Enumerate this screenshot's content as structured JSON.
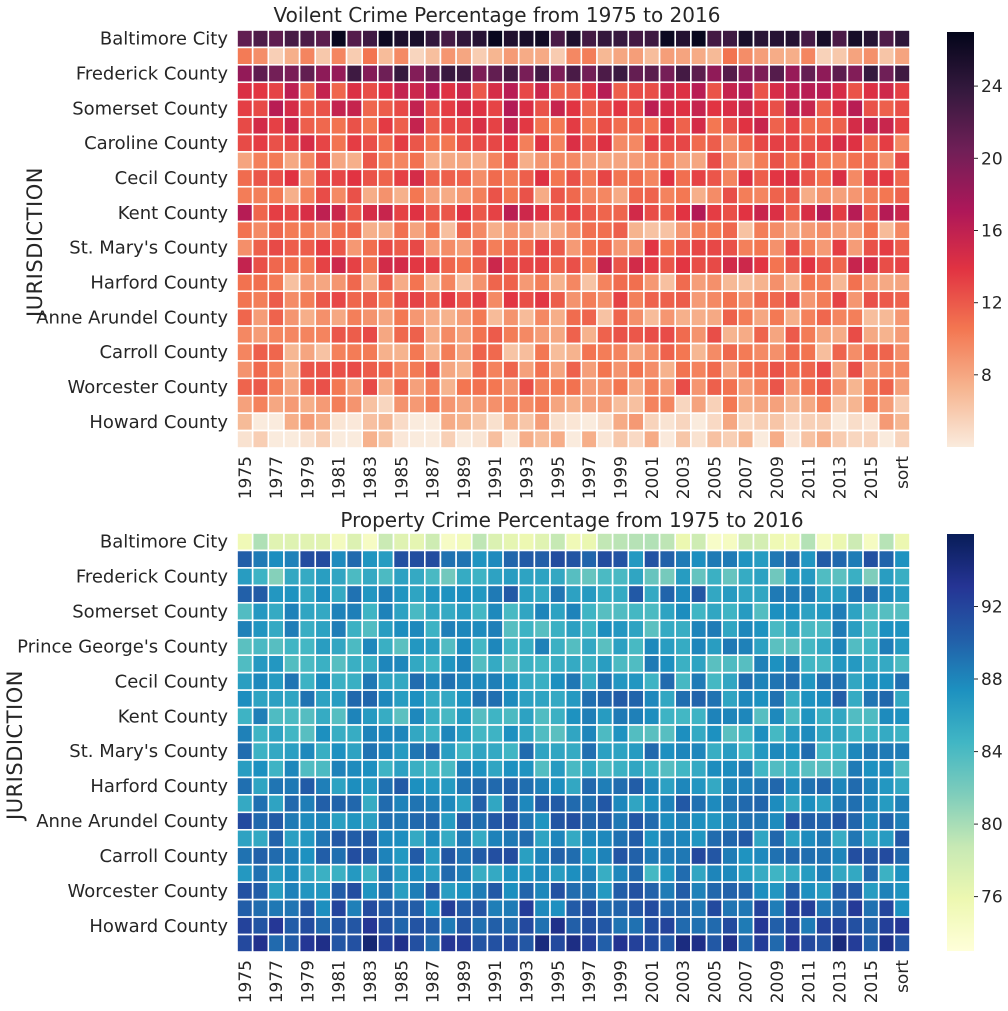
{
  "chart_data": [
    {
      "type": "heatmap",
      "title": "Voilent Crime Percentage from 1975 to 2016",
      "ylabel": "JURISDICTION",
      "xlabel": "",
      "row_tick_labels": [
        "Baltimore City",
        "Frederick County",
        "Somerset County",
        "Caroline County",
        "Cecil County",
        "Kent County",
        "St. Mary's County",
        "Harford County",
        "Anne Arundel County",
        "Carroll County",
        "Worcester County",
        "Howard County"
      ],
      "col_tick_labels": [
        "1975",
        "1977",
        "1979",
        "1981",
        "1983",
        "1985",
        "1987",
        "1989",
        "1991",
        "1993",
        "1995",
        "1997",
        "1999",
        "2001",
        "2003",
        "2005",
        "2007",
        "2009",
        "2011",
        "2013",
        "2015",
        "sort"
      ],
      "columns": [
        "1975",
        "1976",
        "1977",
        "1978",
        "1979",
        "1980",
        "1981",
        "1982",
        "1983",
        "1984",
        "1985",
        "1986",
        "1987",
        "1988",
        "1989",
        "1990",
        "1991",
        "1992",
        "1993",
        "1994",
        "1995",
        "1996",
        "1997",
        "1998",
        "1999",
        "2000",
        "2001",
        "2002",
        "2003",
        "2004",
        "2005",
        "2006",
        "2007",
        "2008",
        "2009",
        "2010",
        "2011",
        "2012",
        "2013",
        "2014",
        "2015",
        "2016",
        "sort"
      ],
      "num_rows": 24,
      "colormap": "rocket_r",
      "colorbar": {
        "min": 4,
        "max": 27,
        "ticks": [
          8,
          12,
          16,
          20,
          24
        ]
      },
      "row_levels": [
        24,
        8,
        21,
        14,
        14,
        13,
        12,
        10,
        12,
        10,
        14,
        9,
        11,
        13,
        9,
        11,
        9,
        10,
        9,
        10,
        10,
        8,
        6,
        5
      ],
      "grid_lines": true
    },
    {
      "type": "heatmap",
      "title": "Property Crime Percentage from 1975 to 2016",
      "ylabel": "JURISDICTION",
      "xlabel": "",
      "row_tick_labels": [
        "Baltimore City",
        "Frederick County",
        "Somerset County",
        "Prince George's County",
        "Cecil County",
        "Kent County",
        "St. Mary's County",
        "Harford County",
        "Anne Arundel County",
        "Carroll County",
        "Worcester County",
        "Howard County"
      ],
      "col_tick_labels": [
        "1975",
        "1977",
        "1979",
        "1981",
        "1983",
        "1985",
        "1987",
        "1989",
        "1991",
        "1993",
        "1995",
        "1997",
        "1999",
        "2001",
        "2003",
        "2005",
        "2007",
        "2009",
        "2011",
        "2013",
        "2015",
        "sort"
      ],
      "columns": [
        "1975",
        "1976",
        "1977",
        "1978",
        "1979",
        "1980",
        "1981",
        "1982",
        "1983",
        "1984",
        "1985",
        "1986",
        "1987",
        "1988",
        "1989",
        "1990",
        "1991",
        "1992",
        "1993",
        "1994",
        "1995",
        "1996",
        "1997",
        "1998",
        "1999",
        "2000",
        "2001",
        "2002",
        "2003",
        "2004",
        "2005",
        "2006",
        "2007",
        "2008",
        "2009",
        "2010",
        "2011",
        "2012",
        "2013",
        "2014",
        "2015",
        "2016",
        "sort"
      ],
      "num_rows": 24,
      "colormap": "YlGnBu",
      "colorbar": {
        "min": 73,
        "max": 96,
        "ticks": [
          76,
          80,
          84,
          88,
          92
        ]
      },
      "row_levels": [
        77,
        89,
        84,
        88,
        86,
        86,
        86,
        86,
        87,
        88,
        86,
        86,
        87,
        86,
        88,
        88,
        89,
        88,
        89,
        87,
        89,
        90,
        91,
        92
      ],
      "grid_lines": true
    }
  ]
}
